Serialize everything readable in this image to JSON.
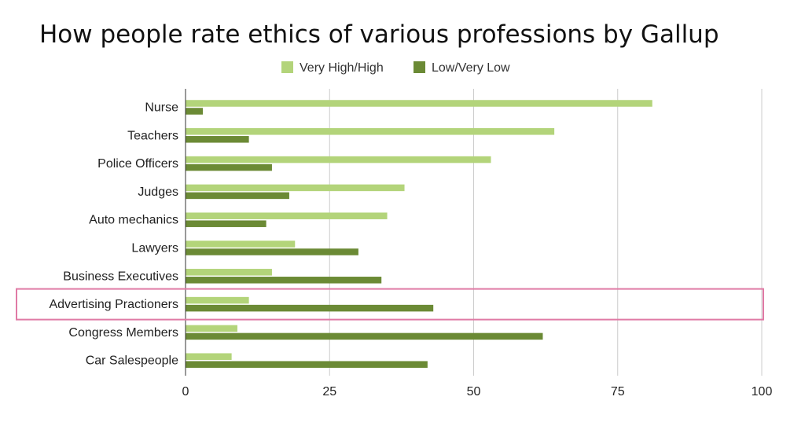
{
  "chart_data": {
    "type": "bar",
    "orientation": "horizontal",
    "title": "How people rate ethics of various professions by Gallup",
    "categories": [
      "Nurse",
      "Teachers",
      "Police Officers",
      "Judges",
      "Auto mechanics",
      "Lawyers",
      "Business Executives",
      "Advertising Practioners",
      "Congress Members",
      "Car Salespeople"
    ],
    "series": [
      {
        "name": "Very High/High",
        "color": "#b3d47a",
        "values": [
          81,
          64,
          53,
          38,
          35,
          19,
          15,
          11,
          9,
          8
        ]
      },
      {
        "name": "Low/Very Low",
        "color": "#6b8a35",
        "values": [
          3,
          11,
          15,
          18,
          14,
          30,
          34,
          43,
          62,
          42
        ]
      }
    ],
    "xlim": [
      0,
      100
    ],
    "xticks": [
      "0",
      "25",
      "50",
      "75",
      "100"
    ],
    "xlabel": "",
    "ylabel": "",
    "legend": "top-center",
    "gridlines": true,
    "highlighted_category": "Advertising Practioners",
    "highlight_color": "#e07aa5"
  }
}
